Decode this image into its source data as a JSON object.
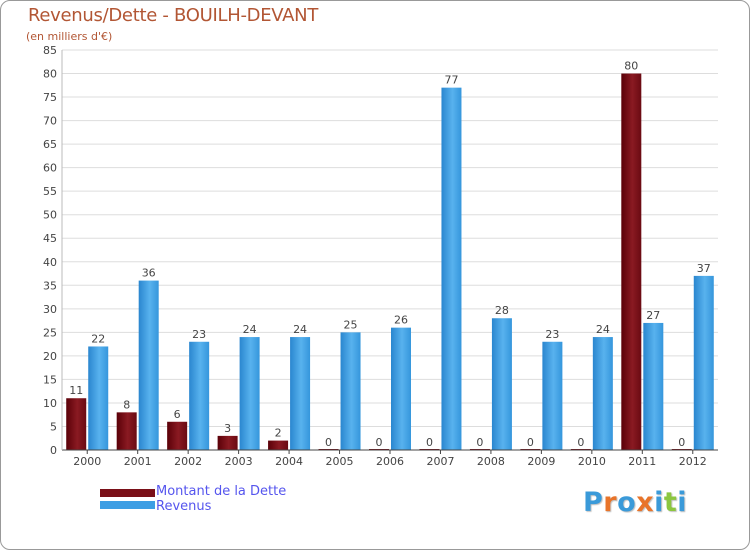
{
  "title": "Revenus/Dette - BOUILH-DEVANT",
  "subtitle": "(en milliers d'€)",
  "logo": {
    "text": "Proxiti",
    "letters": [
      "P",
      "r",
      "o",
      "x",
      "i",
      "t",
      "i"
    ],
    "colors": [
      "#3a9ad9",
      "#e8742a",
      "#3a9ad9",
      "#e8742a",
      "#3a9ad9",
      "#8cc63f",
      "#3a9ad9"
    ]
  },
  "legend": [
    {
      "label": "Montant de la Dette",
      "color": "#7a1018"
    },
    {
      "label": "Revenus",
      "color": "#3d9ee4"
    }
  ],
  "chart_data": {
    "type": "bar",
    "title": "Revenus/Dette - BOUILH-DEVANT",
    "ylabel": "(en milliers d'€)",
    "xlabel": "",
    "categories": [
      "2000",
      "2001",
      "2002",
      "2003",
      "2004",
      "2005",
      "2006",
      "2007",
      "2008",
      "2009",
      "2010",
      "2011",
      "2012"
    ],
    "series": [
      {
        "name": "Montant de la Dette",
        "color": "#7a1018",
        "values": [
          11,
          8,
          6,
          3,
          2,
          0,
          0,
          0,
          0,
          0,
          0,
          80,
          0
        ]
      },
      {
        "name": "Revenus",
        "color": "#3d9ee4",
        "values": [
          22,
          36,
          23,
          24,
          24,
          25,
          26,
          77,
          28,
          23,
          24,
          27,
          37
        ]
      }
    ],
    "ylim": [
      0,
      85
    ],
    "yticks": [
      0,
      5,
      10,
      15,
      20,
      25,
      30,
      35,
      40,
      45,
      50,
      55,
      60,
      65,
      70,
      75,
      80,
      85
    ],
    "grid": true,
    "legend_position": "bottom-left"
  }
}
